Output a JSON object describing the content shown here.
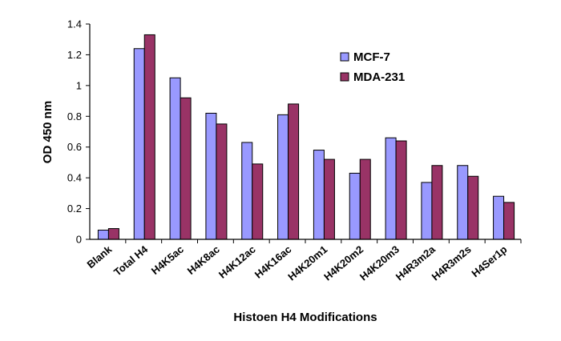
{
  "chart_data": {
    "type": "bar",
    "title": "",
    "xlabel": "Histoen H4 Modifications",
    "ylabel": "OD 450 nm",
    "ylim": [
      0,
      1.4
    ],
    "yticks": [
      "0",
      "0.2",
      "0.4",
      "0.6",
      "0.8",
      "1",
      "1.2",
      "1.4"
    ],
    "grid": false,
    "legend_position": "top-right",
    "categories": [
      "Blank",
      "Total H4",
      "H4K5ac",
      "H4K8ac",
      "H4K12ac",
      "H4K16ac",
      "H4K20m1",
      "H4K20m2",
      "H4K20m3",
      "H4R3m2a",
      "H4R3m2s",
      "H4Ser1p"
    ],
    "series": [
      {
        "name": "MCF-7",
        "color": "#9999ff",
        "values": [
          0.06,
          1.24,
          1.05,
          0.82,
          0.63,
          0.81,
          0.58,
          0.43,
          0.66,
          0.37,
          0.48,
          0.28
        ]
      },
      {
        "name": "MDA-231",
        "color": "#993366",
        "values": [
          0.07,
          1.33,
          0.92,
          0.75,
          0.49,
          0.88,
          0.52,
          0.52,
          0.64,
          0.48,
          0.41,
          0.24
        ]
      }
    ]
  }
}
